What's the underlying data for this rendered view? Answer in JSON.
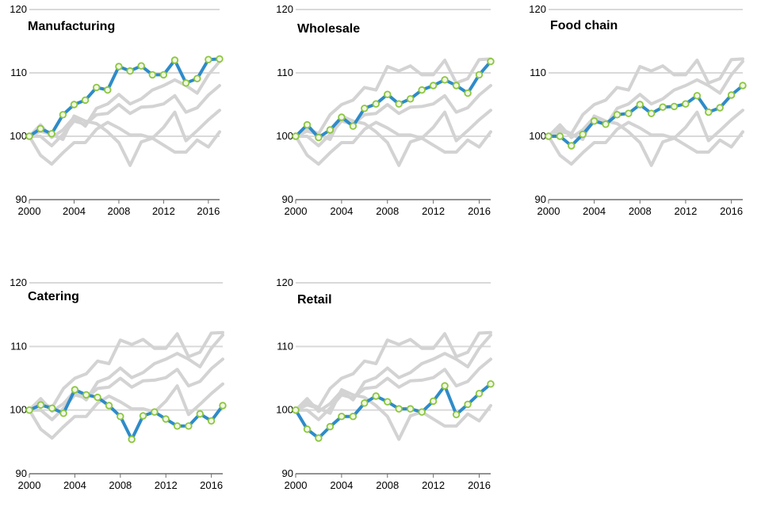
{
  "chart_data": {
    "type": "line",
    "x": [
      2000,
      2001,
      2002,
      2003,
      2004,
      2005,
      2006,
      2007,
      2008,
      2009,
      2010,
      2011,
      2012,
      2013,
      2014,
      2015,
      2016,
      2017
    ],
    "xticks": [
      2000,
      2004,
      2008,
      2012,
      2016
    ],
    "xtick_labels": [
      "2000",
      "2004",
      "2008",
      "2012",
      "2016"
    ],
    "ylim": [
      90,
      120
    ],
    "yticks": [
      90,
      100,
      110,
      120
    ],
    "ytick_labels": [
      "90",
      "100",
      "110",
      "120"
    ],
    "grid": true,
    "colors": {
      "highlight": "#2e8bc9",
      "marker_edge": "#8cc63f",
      "marker_fill": "#f2f7e6",
      "context": "#d3d3d3",
      "grid": "#d9d9d9",
      "axis": "#6e6e6e"
    },
    "series": [
      {
        "name": "Manufacturing",
        "values": [
          100,
          101.2,
          100.4,
          103.4,
          105.0,
          105.7,
          107.7,
          107.3,
          111.0,
          110.3,
          111.1,
          109.7,
          109.7,
          112.0,
          108.4,
          109.1,
          112.1,
          112.2
        ]
      },
      {
        "name": "Wholesale",
        "values": [
          100,
          101.8,
          99.8,
          101.0,
          103.0,
          101.6,
          104.4,
          105.1,
          106.6,
          105.1,
          105.9,
          107.3,
          108.0,
          108.9,
          108.0,
          106.8,
          109.7,
          111.8
        ]
      },
      {
        "name": "Food chain",
        "values": [
          100,
          100,
          98.5,
          100.3,
          102.4,
          101.9,
          103.4,
          103.6,
          105.0,
          103.6,
          104.6,
          104.7,
          105.1,
          106.4,
          103.8,
          104.5,
          106.5,
          108.0
        ]
      },
      {
        "name": "Catering",
        "values": [
          100,
          100.8,
          100.3,
          99.5,
          103.2,
          102.4,
          102.0,
          100.7,
          99.0,
          95.4,
          99.1,
          99.7,
          98.6,
          97.5,
          97.5,
          99.4,
          98.3,
          100.7
        ]
      },
      {
        "name": "Retail",
        "values": [
          100,
          97.0,
          95.6,
          97.4,
          99.0,
          99.0,
          101.1,
          102.2,
          101.3,
          100.2,
          100.2,
          99.7,
          101.4,
          103.8,
          99.3,
          100.9,
          102.6,
          104.1
        ]
      }
    ]
  }
}
